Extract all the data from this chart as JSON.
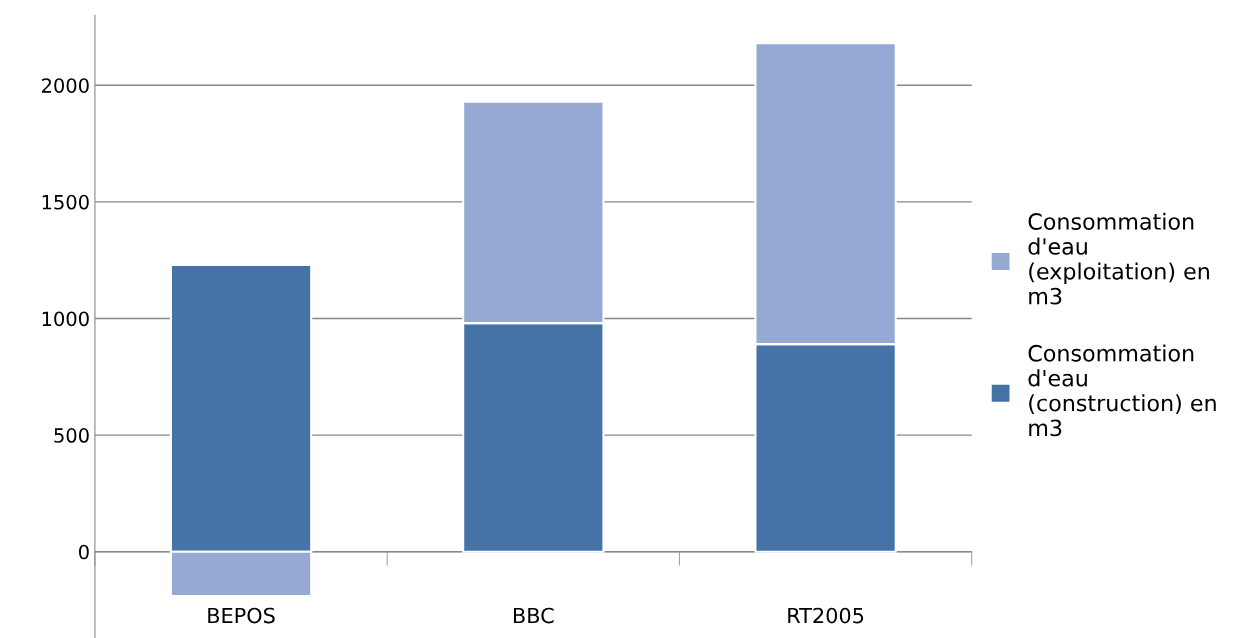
{
  "chart_data": {
    "type": "bar",
    "stacked": true,
    "categories": [
      "BEPOS",
      "BBC",
      "RT2005"
    ],
    "series": [
      {
        "name": "Consommation\nd'eau\n(construction) en\nm3",
        "color": "#4572a7",
        "values": [
          1230,
          980,
          890
        ]
      },
      {
        "name": "Consommation\nd'eau\n(exploitation) en\nm3",
        "color": "#95a9d2",
        "values": [
          -190,
          950,
          1290
        ]
      }
    ],
    "ylim": [
      -370,
      2300
    ],
    "yticks": [
      0,
      500,
      1000,
      1500,
      2000
    ],
    "grid": "y",
    "legend": "right"
  }
}
